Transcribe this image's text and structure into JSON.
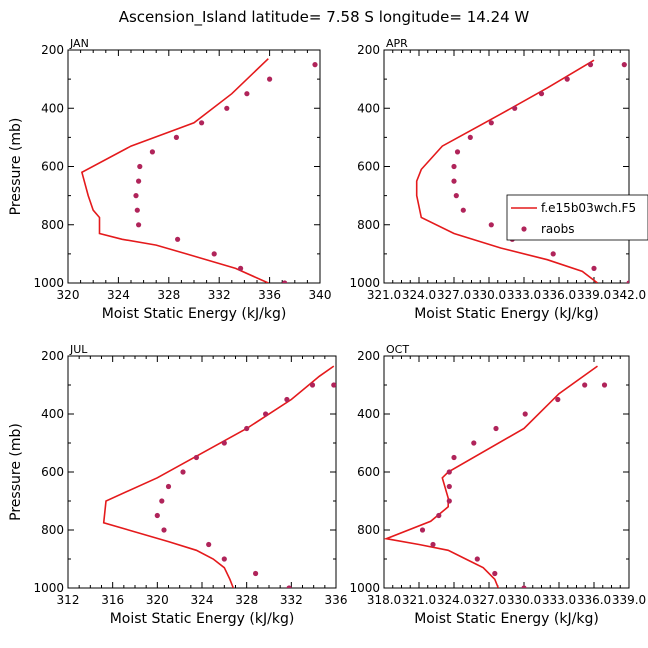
{
  "title": "Ascension_Island  latitude= 7.58 S longitude= 14.24 W",
  "series_names": {
    "model": "f.e15b03wch.F5",
    "obs": "raobs"
  },
  "colors": {
    "model": "#e41a1c",
    "obs": "#b0245a"
  },
  "chart_data": [
    {
      "type": "line",
      "label": "JAN",
      "xlabel": "Moist Static Energy (kJ/kg)",
      "ylabel": "Pressure (mb)",
      "xlim": [
        320,
        340
      ],
      "ylim": [
        1000,
        200
      ],
      "xticks": [
        "320",
        "324",
        "328",
        "332",
        "336",
        "340"
      ],
      "yticks": [
        "200",
        "400",
        "600",
        "800",
        "1000"
      ],
      "series": [
        {
          "name": "f.e15b03wch.F5",
          "mode": "line",
          "x": [
            335.9,
            333.3,
            329.4,
            327.0,
            324.3,
            322.5,
            322.5,
            322.0,
            321.6,
            321.1,
            325.0,
            330.0,
            333.0,
            335.9
          ],
          "y": [
            1000,
            950,
            900,
            870,
            850,
            830,
            775,
            750,
            700,
            620,
            530,
            450,
            350,
            230
          ]
        },
        {
          "name": "raobs",
          "mode": "markers",
          "x": [
            337.2,
            333.7,
            331.6,
            328.7,
            325.6,
            325.5,
            325.4,
            325.6,
            325.7,
            326.7,
            328.6,
            330.6,
            332.6,
            334.2,
            336.0,
            339.6
          ],
          "y": [
            1000,
            950,
            900,
            850,
            800,
            750,
            700,
            650,
            600,
            550,
            500,
            450,
            400,
            350,
            300,
            250
          ]
        }
      ]
    },
    {
      "type": "line",
      "label": "APR",
      "xlabel": "Moist Static Energy (kJ/kg)",
      "ylabel": "Pressure (mb)",
      "xlim": [
        321.0,
        342.0
      ],
      "ylim": [
        1000,
        200
      ],
      "xticks": [
        "321.0",
        "324.0",
        "327.0",
        "330.0",
        "333.0",
        "336.0",
        "339.0",
        "342.0"
      ],
      "yticks": [
        "200",
        "400",
        "600",
        "800",
        "1000"
      ],
      "series": [
        {
          "name": "f.e15b03wch.F5",
          "mode": "line",
          "x": [
            339.3,
            338.0,
            335.0,
            331.0,
            327.0,
            324.2,
            323.8,
            323.8,
            324.2,
            326.0,
            331.0,
            335.0,
            339.0
          ],
          "y": [
            1000,
            960,
            920,
            880,
            830,
            775,
            700,
            650,
            610,
            530,
            420,
            330,
            235
          ]
        },
        {
          "name": "raobs",
          "mode": "markers",
          "x": [
            342.0,
            339.0,
            335.5,
            332.0,
            330.2,
            327.8,
            327.2,
            327.0,
            327.0,
            327.3,
            328.4,
            330.2,
            332.2,
            334.5,
            336.7,
            338.7,
            341.6
          ],
          "y": [
            1000,
            950,
            900,
            850,
            800,
            750,
            700,
            650,
            600,
            550,
            500,
            450,
            400,
            350,
            300,
            250,
            250
          ]
        }
      ]
    },
    {
      "type": "line",
      "label": "JUL",
      "xlabel": "Moist Static Energy (kJ/kg)",
      "ylabel": "Pressure (mb)",
      "xlim": [
        312,
        336
      ],
      "ylim": [
        1000,
        200
      ],
      "xticks": [
        "312",
        "316",
        "320",
        "324",
        "328",
        "332",
        "336"
      ],
      "yticks": [
        "200",
        "400",
        "600",
        "800",
        "1000"
      ],
      "series": [
        {
          "name": "f.e15b03wch.F5",
          "mode": "line",
          "x": [
            326.8,
            326.5,
            326.0,
            325.0,
            323.5,
            321.0,
            315.2,
            315.4,
            320.0,
            328.0,
            332.0,
            334.5,
            335.8
          ],
          "y": [
            1000,
            970,
            930,
            900,
            870,
            840,
            775,
            700,
            620,
            450,
            350,
            270,
            235
          ]
        },
        {
          "name": "raobs",
          "mode": "markers",
          "x": [
            331.8,
            328.8,
            326.0,
            324.6,
            320.6,
            320.0,
            320.4,
            321.0,
            322.3,
            323.5,
            326.0,
            328.0,
            329.7,
            331.6,
            333.9,
            335.8
          ],
          "y": [
            1000,
            950,
            900,
            850,
            800,
            750,
            700,
            650,
            600,
            550,
            500,
            450,
            400,
            350,
            300,
            300
          ]
        }
      ]
    },
    {
      "type": "line",
      "label": "OCT",
      "xlabel": "Moist Static Energy (kJ/kg)",
      "ylabel": "Pressure (mb)",
      "xlim": [
        318.0,
        339.0
      ],
      "ylim": [
        1000,
        200
      ],
      "xticks": [
        "318.0",
        "321.0",
        "324.0",
        "327.0",
        "330.0",
        "333.0",
        "336.0",
        "339.0"
      ],
      "yticks": [
        "200",
        "400",
        "600",
        "800",
        "1000"
      ],
      "series": [
        {
          "name": "f.e15b03wch.F5",
          "mode": "line",
          "x": [
            327.8,
            327.5,
            326.5,
            325.0,
            323.5,
            321.0,
            318.2,
            322.0,
            323.5,
            323.5,
            323.0,
            323.5,
            330.0,
            333.0,
            336.3
          ],
          "y": [
            1000,
            970,
            930,
            900,
            870,
            850,
            830,
            770,
            720,
            690,
            620,
            600,
            450,
            330,
            235
          ]
        },
        {
          "name": "raobs",
          "mode": "markers",
          "x": [
            330.0,
            327.5,
            326.0,
            322.2,
            321.3,
            322.7,
            323.6,
            323.6,
            323.6,
            324.0,
            325.7,
            327.6,
            330.1,
            332.9,
            335.2,
            336.9
          ],
          "y": [
            1000,
            950,
            900,
            850,
            800,
            750,
            700,
            650,
            600,
            550,
            500,
            450,
            400,
            350,
            300,
            300
          ]
        }
      ]
    }
  ]
}
